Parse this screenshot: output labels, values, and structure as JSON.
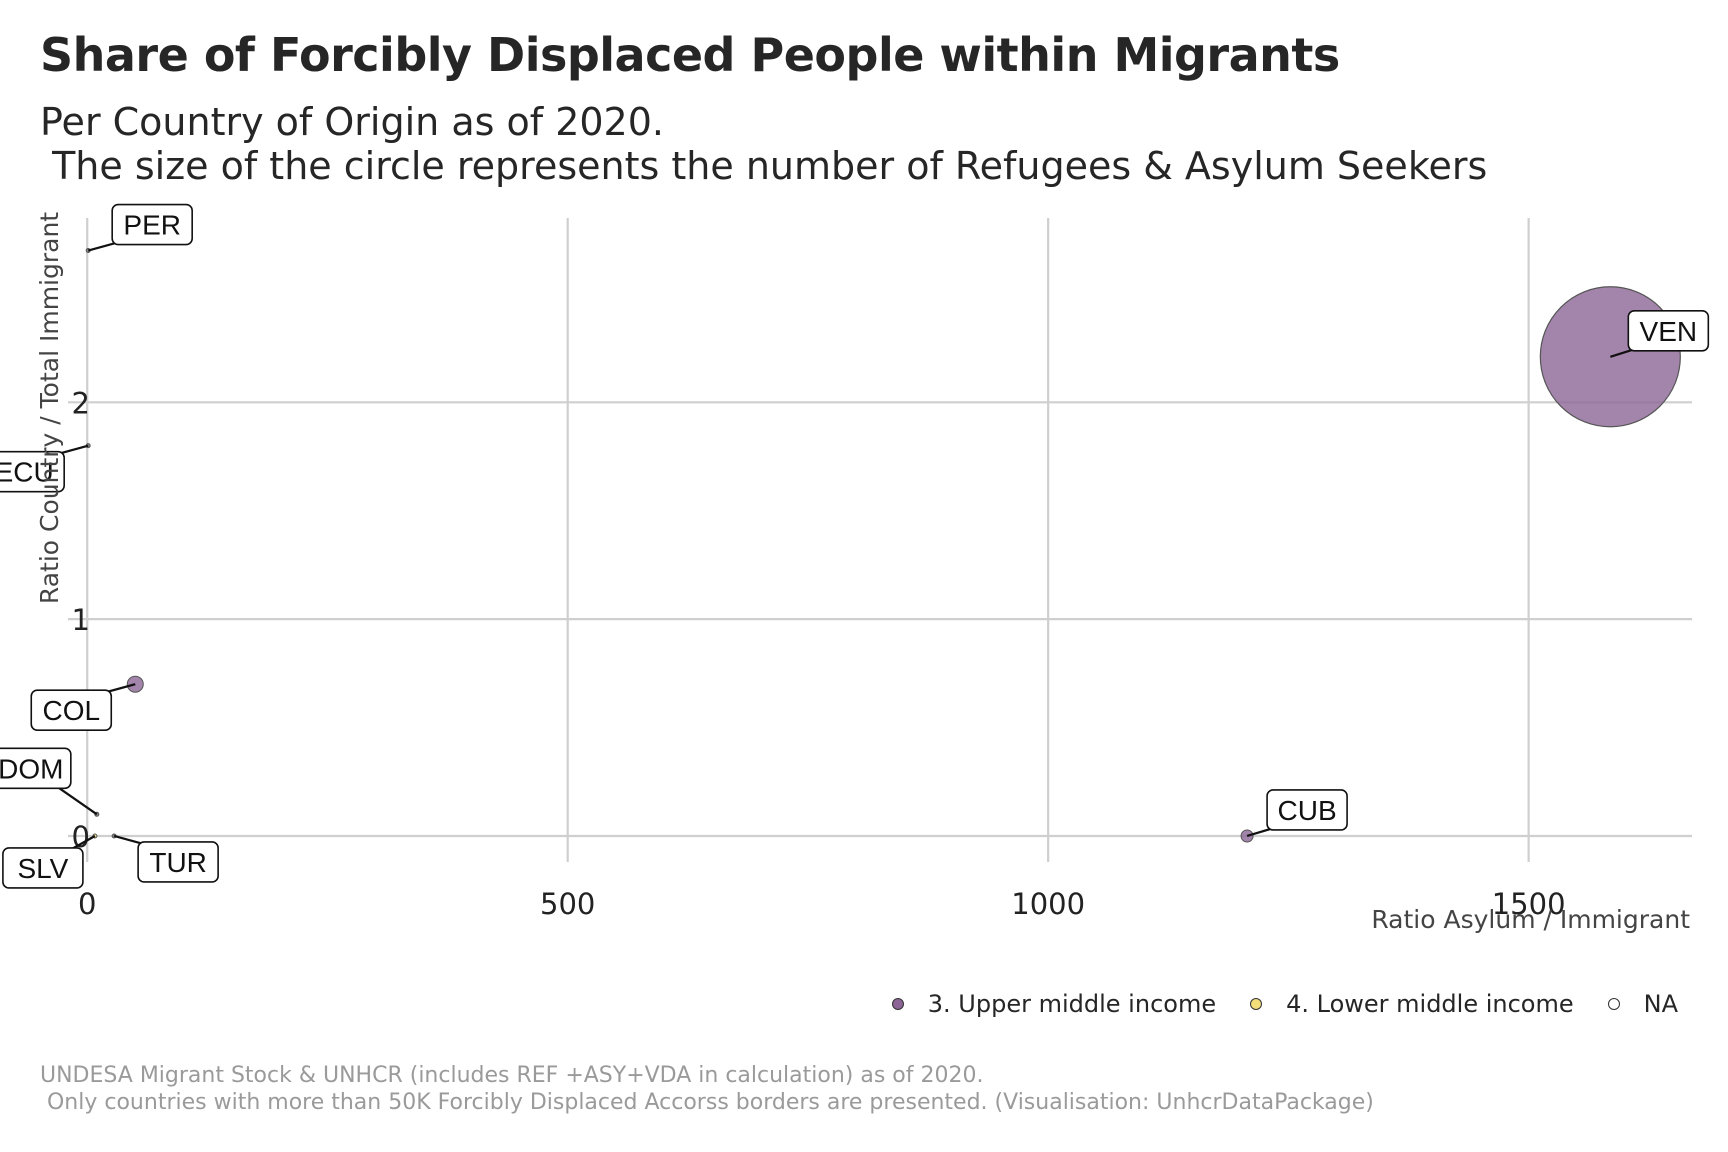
{
  "title": "Share of Forcibly Displaced People within Migrants",
  "subtitle": "Per Country of Origin as of 2020.\n The size of the circle represents the number of Refugees & Asylum Seekers",
  "caption": "UNDESA Migrant Stock & UNHCR (includes REF +ASY+VDA in calculation) as of 2020.\n Only countries with more than 50K Forcibly Displaced Accorss borders are presented. (Visualisation: UnhcrDataPackage)",
  "chart_data": {
    "type": "scatter",
    "xlabel": "Ratio Asylum / Immigrant",
    "ylabel": "Ratio Country / Total Immigrant",
    "xlim": [
      -20,
      1670
    ],
    "ylim": [
      -0.12,
      2.85
    ],
    "xticks": [
      0,
      500,
      1000,
      1500
    ],
    "yticks": [
      0,
      1,
      2
    ],
    "grid": true,
    "legend_position": "bottom-right",
    "legend": [
      {
        "label": "3. Upper middle income",
        "color": "#8C6596"
      },
      {
        "label": "4. Lower middle income",
        "color": "#F3DE7A"
      },
      {
        "label": "NA",
        "color": "#ffffff"
      }
    ],
    "points": [
      {
        "label": "VEN",
        "x": 1585,
        "y": 2.21,
        "size": 70,
        "category": "3. Upper middle income"
      },
      {
        "label": "PER",
        "x": 1,
        "y": 2.7,
        "size": 2,
        "category": "NA"
      },
      {
        "label": "ECU",
        "x": 1,
        "y": 1.8,
        "size": 2,
        "category": "NA"
      },
      {
        "label": "COL",
        "x": 50,
        "y": 0.7,
        "size": 8,
        "category": "3. Upper middle income"
      },
      {
        "label": "DOM",
        "x": 10,
        "y": 0.1,
        "size": 2,
        "category": "NA"
      },
      {
        "label": "SLV",
        "x": 8,
        "y": 0.0,
        "size": 2,
        "category": "4. Lower middle income"
      },
      {
        "label": "TUR",
        "x": 28,
        "y": 0.0,
        "size": 2,
        "category": "NA"
      },
      {
        "label": "CUB",
        "x": 1207,
        "y": 0.0,
        "size": 6,
        "category": "3. Upper middle income"
      }
    ]
  }
}
